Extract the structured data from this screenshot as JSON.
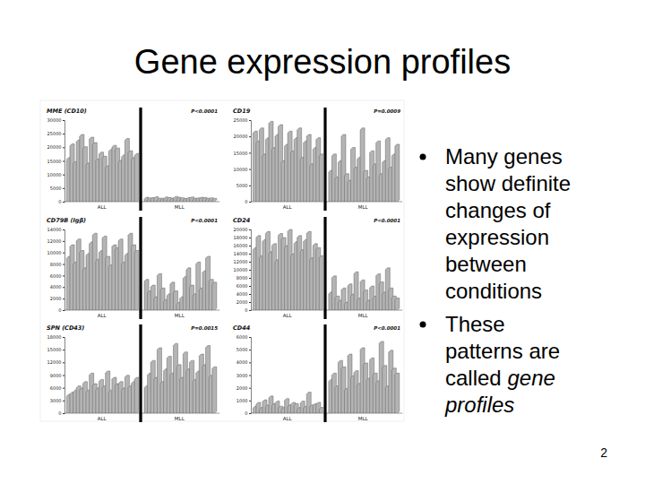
{
  "slide": {
    "title": "Gene expression profiles",
    "bullets": [
      {
        "lines": [
          [
            {
              "text": "Many genes"
            }
          ],
          [
            {
              "text": "show definite"
            }
          ],
          [
            {
              "text": "changes of"
            }
          ],
          [
            {
              "text": "expression"
            }
          ],
          [
            {
              "text": "between"
            }
          ],
          [
            {
              "text": "conditions"
            }
          ]
        ]
      },
      {
        "lines": [
          [
            {
              "text": "These"
            }
          ],
          [
            {
              "text": "patterns are"
            }
          ],
          [
            {
              "text": "called"
            },
            {
              "text": "gene",
              "emphasis": true
            }
          ],
          [
            {
              "text": "profiles",
              "emphasis": true
            }
          ]
        ]
      }
    ],
    "page_number": "2"
  },
  "chart_data": [
    {
      "type": "bar",
      "title": "MME (CD10)",
      "annotations": [
        "P<0.0001"
      ],
      "ylim": [
        0,
        30000
      ],
      "yticks": [
        0,
        5000,
        10000,
        15000,
        20000,
        25000,
        30000
      ],
      "series": [
        {
          "name": "ALL",
          "color": "#b4b4b4",
          "values": [
            15500,
            20500,
            14000,
            22000,
            24000,
            19500,
            13500,
            23000,
            21000,
            15000,
            17500,
            16000,
            12500,
            18500,
            20000,
            19000,
            14500,
            16500,
            22500,
            18000,
            15500,
            17000
          ]
        },
        {
          "name": "MLL",
          "color": "#b4b4b4",
          "values": [
            900,
            700,
            800,
            1100,
            600,
            500,
            1000,
            800,
            600,
            1200,
            900,
            700,
            500,
            800,
            1000,
            600,
            700,
            900,
            800,
            600,
            700,
            500
          ]
        }
      ]
    },
    {
      "type": "bar",
      "title": "CD19",
      "annotations": [
        "P=0.0009"
      ],
      "ylim": [
        0,
        25000
      ],
      "yticks": [
        0,
        5000,
        10000,
        15000,
        20000,
        25000
      ],
      "series": [
        {
          "name": "ALL",
          "color": "#b4b4b4",
          "values": [
            21000,
            18000,
            22000,
            14000,
            19000,
            24000,
            16000,
            20000,
            23000,
            12000,
            17000,
            21000,
            15000,
            19000,
            22000,
            13000,
            18000,
            20000,
            11000,
            16000,
            19000,
            14000
          ]
        },
        {
          "name": "MLL",
          "color": "#b4b4b4",
          "values": [
            9000,
            14000,
            7000,
            12000,
            20000,
            8000,
            6000,
            16000,
            10000,
            13000,
            22000,
            9000,
            7000,
            15000,
            11000,
            18000,
            8000,
            12000,
            19000,
            10000,
            14000,
            17000
          ]
        }
      ]
    },
    {
      "type": "bar",
      "title": "CD79B (Igβ)",
      "annotations": [
        "P<0.0001"
      ],
      "ylim": [
        0,
        14000
      ],
      "yticks": [
        0,
        2000,
        4000,
        6000,
        8000,
        10000,
        12000,
        14000
      ],
      "series": [
        {
          "name": "ALL",
          "color": "#b4b4b4",
          "values": [
            9000,
            11000,
            8000,
            12000,
            10000,
            7000,
            9500,
            11500,
            13000,
            8500,
            10000,
            12500,
            9000,
            7500,
            11000,
            10500,
            12000,
            8000,
            9500,
            13000,
            11000,
            10000
          ]
        },
        {
          "name": "MLL",
          "color": "#b4b4b4",
          "values": [
            5000,
            3000,
            4000,
            2000,
            6000,
            3500,
            1500,
            2500,
            4500,
            3000,
            1000,
            2000,
            5500,
            7000,
            4000,
            2500,
            8000,
            3500,
            6500,
            9000,
            5000,
            4500
          ]
        }
      ]
    },
    {
      "type": "bar",
      "title": "CD24",
      "annotations": [
        "P<0.0001"
      ],
      "ylim": [
        0,
        20000
      ],
      "yticks": [
        0,
        2000,
        4000,
        6000,
        8000,
        10000,
        12000,
        14000,
        16000,
        18000,
        20000
      ],
      "series": [
        {
          "name": "ALL",
          "color": "#b4b4b4",
          "values": [
            15000,
            18000,
            13000,
            17000,
            19000,
            14000,
            16000,
            12000,
            18500,
            17500,
            15500,
            19500,
            13500,
            16500,
            18000,
            14500,
            17000,
            19000,
            12500,
            16000,
            15000,
            13000
          ]
        },
        {
          "name": "MLL",
          "color": "#b4b4b4",
          "values": [
            4000,
            8000,
            3000,
            2000,
            5000,
            1500,
            6000,
            3500,
            9000,
            2500,
            7000,
            4500,
            2000,
            5500,
            3000,
            8500,
            6500,
            4000,
            10000,
            5000,
            3000,
            2500
          ]
        }
      ]
    },
    {
      "type": "bar",
      "title": "SPN (CD43)",
      "annotations": [
        "P=0.0015"
      ],
      "ylim": [
        0,
        18000
      ],
      "yticks": [
        0,
        3000,
        6000,
        9000,
        12000,
        15000,
        18000
      ],
      "series": [
        {
          "name": "ALL",
          "color": "#b4b4b4",
          "values": [
            4000,
            4500,
            5000,
            6000,
            5500,
            7000,
            5000,
            9000,
            6500,
            5500,
            7500,
            6000,
            9500,
            5000,
            8000,
            6500,
            7000,
            5500,
            8500,
            6000,
            7000,
            8000
          ]
        },
        {
          "name": "MLL",
          "color": "#b4b4b4",
          "values": [
            6000,
            9000,
            12000,
            8000,
            15000,
            7000,
            10000,
            13000,
            9000,
            16000,
            11000,
            8000,
            14000,
            10000,
            12000,
            7500,
            9500,
            13500,
            11000,
            15500,
            8500,
            10500
          ]
        }
      ]
    },
    {
      "type": "bar",
      "title": "CD44",
      "annotations": [
        "P<0.0001"
      ],
      "ylim": [
        0,
        6000
      ],
      "yticks": [
        0,
        1000,
        2000,
        3000,
        4000,
        5000,
        6000
      ],
      "series": [
        {
          "name": "ALL",
          "color": "#b4b4b4",
          "values": [
            400,
            700,
            300,
            900,
            500,
            1200,
            600,
            800,
            400,
            300,
            1000,
            500,
            700,
            600,
            300,
            800,
            400,
            1500,
            500,
            600,
            700,
            300
          ]
        },
        {
          "name": "MLL",
          "color": "#b4b4b4",
          "values": [
            2500,
            3000,
            2000,
            4000,
            3500,
            1800,
            4500,
            2800,
            3200,
            2200,
            5000,
            3800,
            2600,
            4200,
            3000,
            2400,
            5500,
            3600,
            2000,
            4800,
            3400,
            3000
          ]
        }
      ]
    }
  ]
}
